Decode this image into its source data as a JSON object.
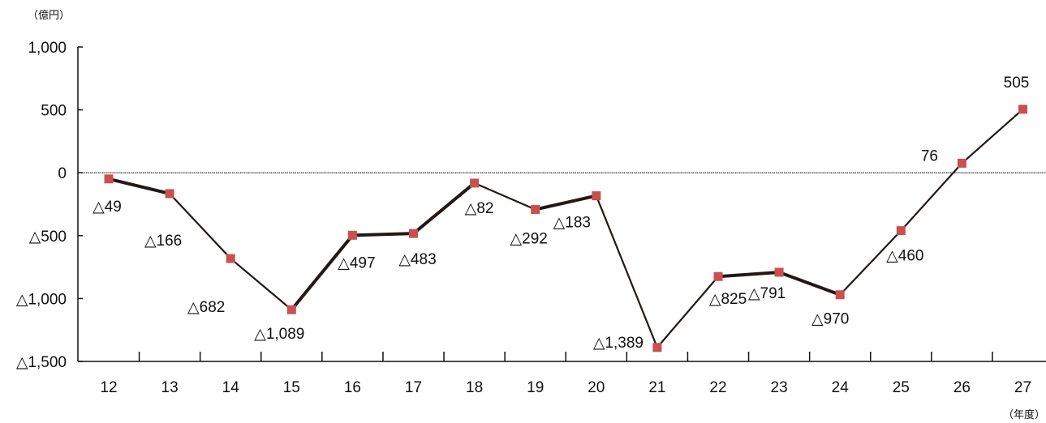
{
  "chart_data": {
    "type": "line",
    "y_unit_label": "（億円）",
    "x_unit_label": "（年度）",
    "categories": [
      "12",
      "13",
      "14",
      "15",
      "16",
      "17",
      "18",
      "19",
      "20",
      "21",
      "22",
      "23",
      "24",
      "25",
      "26",
      "27"
    ],
    "values": [
      -49,
      -166,
      -682,
      -1089,
      -497,
      -483,
      -82,
      -292,
      -183,
      -1389,
      -825,
      -791,
      -970,
      -460,
      76,
      505
    ],
    "data_labels": [
      "△49",
      "△166",
      "△682",
      "△1,089",
      "△497",
      "△483",
      "△82",
      "△292",
      "△183",
      "△1,389",
      "△825",
      "△791",
      "△970",
      "△460",
      "76",
      "505"
    ],
    "y_ticks": [
      1000,
      500,
      0,
      -500,
      -1000,
      -1500
    ],
    "y_tick_labels": [
      "1,000",
      "500",
      "0",
      "△500",
      "△1,000",
      "△1,500"
    ],
    "ylim": [
      -1500,
      1000
    ],
    "line_color": "#231815",
    "marker_color": "#c9504f",
    "zero_line": true,
    "grid": false,
    "legend": "none"
  }
}
